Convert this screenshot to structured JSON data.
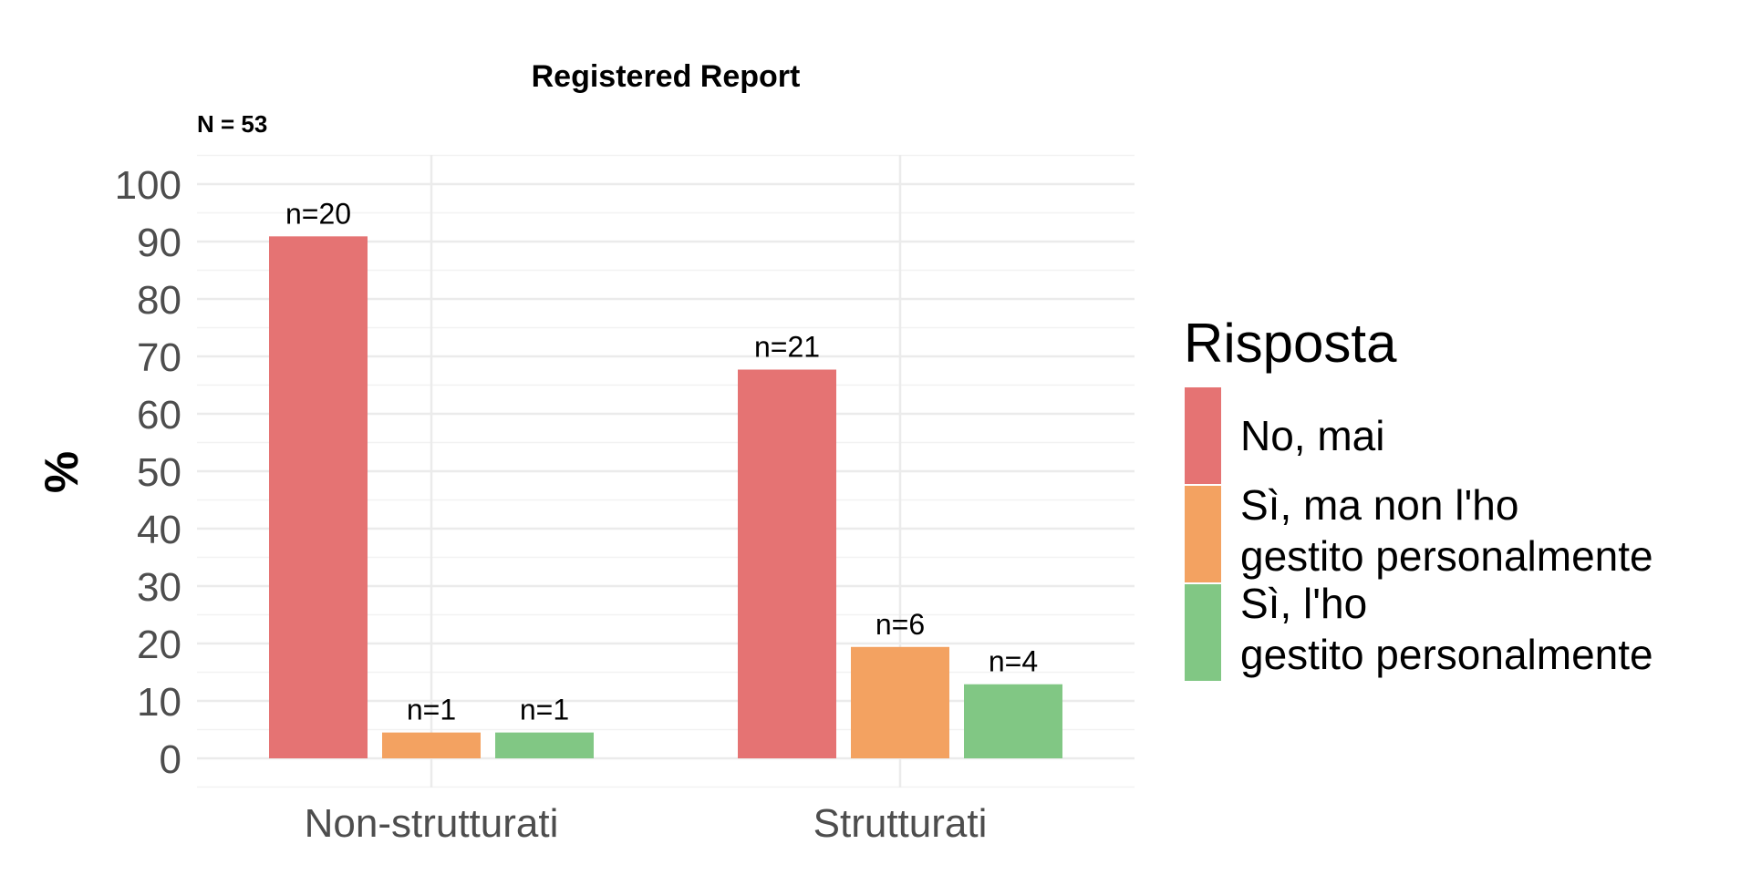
{
  "chart_data": {
    "type": "bar",
    "title": "Registered Report",
    "subtitle": "N = 53",
    "xlabel": "",
    "ylabel": "%",
    "ylim": [
      0,
      100
    ],
    "yticks": [
      0,
      10,
      20,
      30,
      40,
      50,
      60,
      70,
      80,
      90,
      100
    ],
    "categories": [
      "Non-strutturati",
      "Strutturati"
    ],
    "legend_title": "Risposta",
    "legend_position": "right",
    "grid": true,
    "series": [
      {
        "name": "No, mai",
        "name_lines": [
          "No, mai"
        ],
        "color": "#e57373",
        "values": [
          90.9,
          67.7
        ],
        "labels": [
          "n=20",
          "n=21"
        ]
      },
      {
        "name": "Sì, ma non l'ho gestito personalmente",
        "name_lines": [
          "Sì, ma non l'ho",
          "gestito personalmente"
        ],
        "color": "#f3a261",
        "values": [
          4.5,
          19.4
        ],
        "labels": [
          "n=1",
          "n=6"
        ]
      },
      {
        "name": "Sì, l'ho gestito personalmente",
        "name_lines": [
          "Sì, l'ho",
          "gestito personalmente"
        ],
        "color": "#81c784",
        "values": [
          4.5,
          12.9
        ],
        "labels": [
          "n=1",
          "n=4"
        ]
      }
    ]
  }
}
